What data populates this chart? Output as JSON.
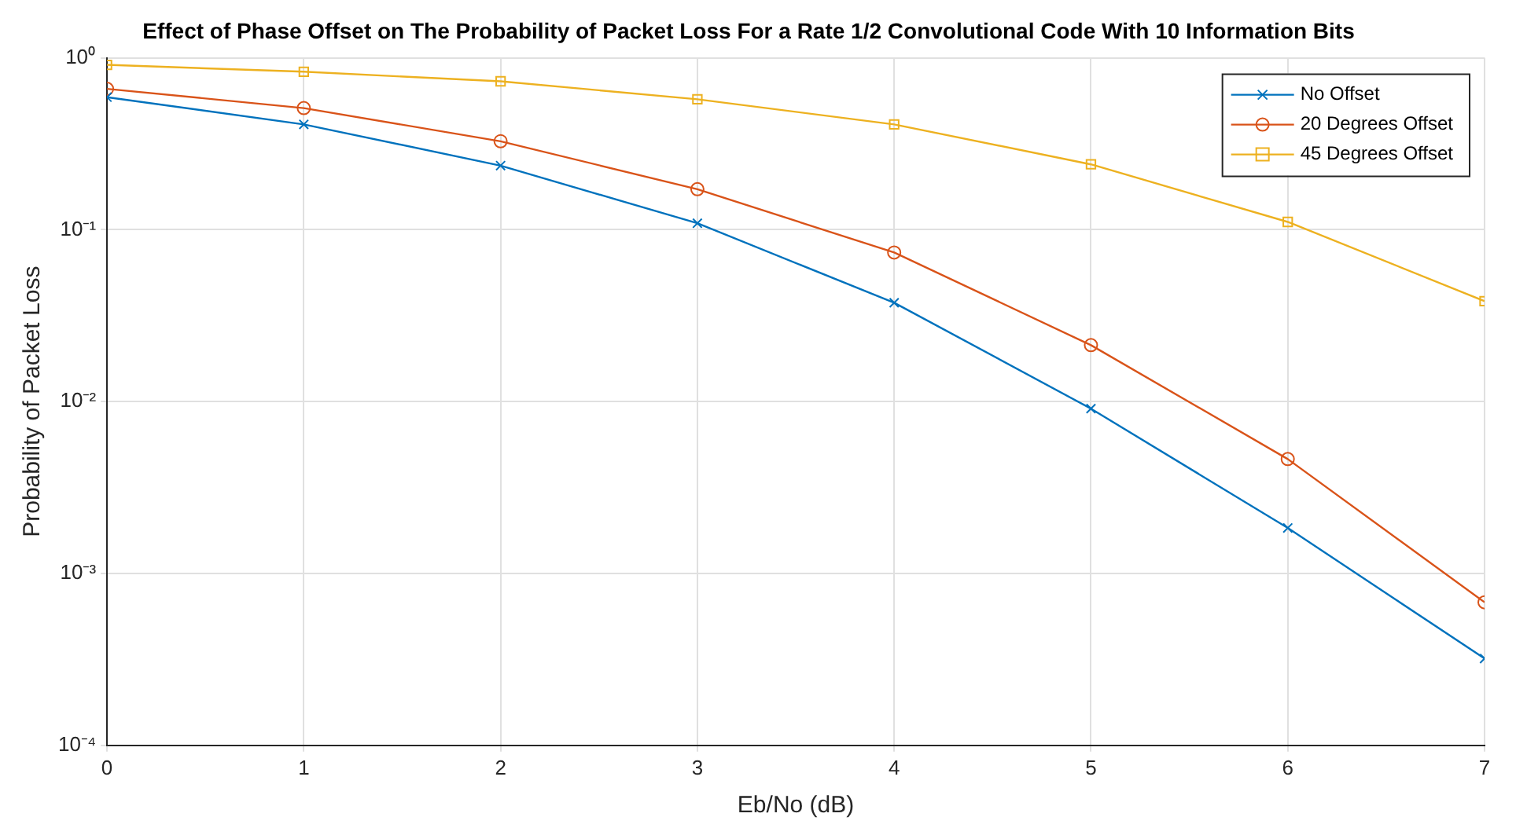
{
  "chart_data": {
    "type": "line",
    "title": "Effect of Phase Offset on The Probability of Packet Loss For a Rate 1/2 Convolutional Code With 10 Information Bits",
    "xlabel": "Eb/No (dB)",
    "ylabel": "Probability of Packet Loss",
    "x": [
      0,
      1,
      2,
      3,
      4,
      5,
      6,
      7
    ],
    "series": [
      {
        "name": "No Offset",
        "color": "#0072bd",
        "marker": "cross",
        "values": [
          0.59,
          0.41,
          0.236,
          0.109,
          0.0376,
          0.0091,
          0.00184,
          0.00032
        ]
      },
      {
        "name": "20 Degrees Offset",
        "color": "#d95319",
        "marker": "circle",
        "values": [
          0.66,
          0.51,
          0.327,
          0.172,
          0.0737,
          0.0213,
          0.00463,
          0.00068
        ]
      },
      {
        "name": "45 Degrees Offset",
        "color": "#edb120",
        "marker": "square",
        "values": [
          0.91,
          0.83,
          0.73,
          0.574,
          0.41,
          0.24,
          0.111,
          0.0384
        ]
      }
    ],
    "xlim": [
      0,
      7
    ],
    "xticks": [
      0,
      1,
      2,
      3,
      4,
      5,
      6,
      7
    ],
    "ylim": [
      0.0001,
      1
    ],
    "yticks": [
      {
        "value": 0.0001,
        "label": "10⁻⁴"
      },
      {
        "value": 0.001,
        "label": "10⁻³"
      },
      {
        "value": 0.01,
        "label": "10⁻²"
      },
      {
        "value": 0.1,
        "label": "10⁻¹"
      },
      {
        "value": 1,
        "label": "10⁰"
      }
    ],
    "log": "y",
    "grid": true,
    "legend": "top right",
    "line_style": "solid"
  }
}
